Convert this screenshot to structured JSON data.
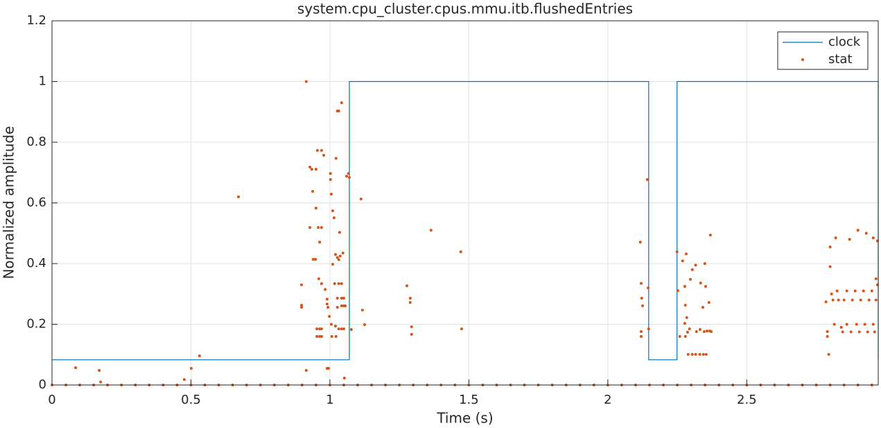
{
  "chart_data": {
    "type": "line",
    "title": "system.cpu_cluster.cpus.mmu.itb.flushedEntries",
    "xlabel": "Time (s)",
    "ylabel": "Normalized amplitude",
    "xlim": [
      0,
      2.973
    ],
    "ylim": [
      0,
      1.2
    ],
    "xticks": [
      0,
      0.5,
      1,
      1.5,
      2,
      2.5
    ],
    "yticks": [
      0,
      0.2,
      0.4,
      0.6,
      0.8,
      1,
      1.2
    ],
    "grid": true,
    "legend": "northeast",
    "series": [
      {
        "name": "clock",
        "type": "line",
        "color": "#0072bd",
        "x": [
          0,
          1.07,
          1.07,
          2.147,
          2.147,
          2.249,
          2.249,
          2.973,
          2.973
        ],
        "values": [
          0.083,
          0.083,
          1,
          1,
          0.083,
          0.083,
          1,
          1,
          0.083
        ]
      },
      {
        "name": "stat",
        "type": "scatter",
        "color": "#d95319",
        "x": [
          0,
          0.05,
          0.1,
          0.15,
          0.2,
          0.25,
          0.3,
          0.35,
          0.4,
          0.45,
          0.5,
          0.55,
          0.6,
          0.65,
          0.7,
          0.75,
          0.8,
          0.85,
          0.9,
          0.95,
          1,
          1.05,
          1.1,
          1.15,
          1.2,
          1.25,
          1.3,
          1.35,
          1.4,
          1.45,
          1.5,
          1.55,
          1.6,
          1.65,
          1.7,
          1.75,
          1.8,
          1.85,
          1.9,
          1.95,
          2,
          2.05,
          2.1,
          2.15,
          2.2,
          2.25,
          2.3,
          2.35,
          2.4,
          2.45,
          2.5,
          2.55,
          2.6,
          2.65,
          2.7,
          2.75,
          2.8,
          2.85,
          2.9,
          2.95,
          0.085,
          0.17,
          0.175,
          0.476,
          0.501,
          0.531,
          0.671,
          0.898,
          0.898,
          0.898,
          0.915,
          0.915,
          0.928,
          0.928,
          0.935,
          0.938,
          0.94,
          0.948,
          0.95,
          0.95,
          0.953,
          0.953,
          0.955,
          0.958,
          0.96,
          0.963,
          0.963,
          0.963,
          0.97,
          0.97,
          0.97,
          0.97,
          0.97,
          0.978,
          0.983,
          0.99,
          0.99,
          0.99,
          0.993,
          0.995,
          0.998,
          1.002,
          1.002,
          1.005,
          1.005,
          1.007,
          1.01,
          1.01,
          1.015,
          1.017,
          1.02,
          1.02,
          1.022,
          1.022,
          1.027,
          1.027,
          1.027,
          1.027,
          1.032,
          1.032,
          1.032,
          1.032,
          1.035,
          1.037,
          1.042,
          1.042,
          1.042,
          1.042,
          1.042,
          1.047,
          1.05,
          1.05,
          1.05,
          1.052,
          1.055,
          1.06,
          1.067,
          1.07,
          1.077,
          1.112,
          1.117,
          1.125,
          1.277,
          1.289,
          1.289,
          1.294,
          1.294,
          1.364,
          1.471,
          1.474,
          2.117,
          2.12,
          2.122,
          2.125,
          2.12,
          2.12,
          2.142,
          2.145,
          2.147,
          2.249,
          2.252,
          2.259,
          2.269,
          2.277,
          2.282,
          2.279,
          2.284,
          2.287,
          2.277,
          2.294,
          2.279,
          2.289,
          2.304,
          2.316,
          2.331,
          2.344,
          2.354,
          2.297,
          2.304,
          2.316,
          2.334,
          2.349,
          2.352,
          2.342,
          2.347,
          2.357,
          2.367,
          2.372,
          2.364,
          2.369,
          2.332,
          2.319,
          2.785,
          2.79,
          2.79,
          2.795,
          2.8,
          2.8,
          2.805,
          2.81,
          2.815,
          2.82,
          2.825,
          2.83,
          2.84,
          2.845,
          2.85,
          2.86,
          2.86,
          2.87,
          2.875,
          2.88,
          2.89,
          2.895,
          2.9,
          2.905,
          2.91,
          2.92,
          2.925,
          2.93,
          2.935,
          2.94,
          2.95,
          2.955,
          2.955,
          2.96,
          2.965,
          2.965,
          2.97,
          2.97
        ],
        "values": [
          0,
          0,
          0,
          0,
          0,
          0,
          0,
          0,
          0,
          0,
          0,
          0,
          0,
          0,
          0,
          0,
          0,
          0,
          0,
          0,
          0,
          0,
          0,
          0,
          0,
          0,
          0,
          0,
          0,
          0,
          0,
          0,
          0,
          0,
          0,
          0,
          0,
          0,
          0,
          0,
          0,
          0,
          0,
          0,
          0,
          0,
          0,
          0,
          0,
          0,
          0,
          0,
          0,
          0,
          0,
          0,
          0,
          0,
          0,
          0,
          0.057,
          0.048,
          0.01,
          0.018,
          0.055,
          0.096,
          0.62,
          0.33,
          0.263,
          0.256,
          1,
          0.048,
          0.718,
          0.519,
          0.711,
          0.638,
          0.414,
          0.414,
          0.711,
          0.583,
          0.185,
          0.16,
          0.773,
          0.519,
          0.35,
          0.471,
          0.185,
          0.16,
          0.773,
          0.519,
          0.334,
          0.185,
          0.16,
          0.757,
          0.315,
          0.283,
          0.267,
          0.055,
          0.256,
          0.055,
          0.226,
          0.697,
          0.677,
          0.629,
          0.2,
          0.16,
          0.574,
          0.398,
          0.551,
          0.334,
          0.43,
          0.194,
          0.747,
          0.16,
          0.903,
          0.42,
          0.286,
          0.256,
          0.903,
          0.413,
          0.334,
          0.185,
          0.503,
          0.425,
          0.93,
          0.334,
          0.286,
          0.261,
          0.185,
          0.435,
          0.286,
          0.261,
          0.185,
          0.023,
          0.261,
          0.688,
          0.697,
          0.684,
          0.183,
          0.613,
          0.247,
          0.199,
          0.327,
          0.286,
          0.272,
          0.192,
          0.167,
          0.51,
          0.439,
          0.185,
          0.471,
          0.335,
          0.286,
          0.261,
          0.176,
          0.16,
          0.677,
          0.32,
          0.185,
          0.439,
          0.311,
          0.16,
          0.409,
          0.325,
          0.432,
          0.263,
          0.222,
          0.174,
          0.203,
          0.185,
          0.16,
          0.101,
          0.101,
          0.101,
          0.101,
          0.101,
          0.101,
          0.348,
          0.38,
          0.395,
          0.336,
          0.4,
          0.325,
          0.256,
          0.176,
          0.178,
          0.178,
          0.176,
          0.272,
          0.494,
          0.183,
          0.176,
          0.274,
          0.176,
          0.16,
          0.101,
          0.455,
          0.39,
          0.3,
          0.28,
          0.2,
          0.485,
          0.31,
          0.28,
          0.19,
          0.175,
          0.28,
          0.31,
          0.2,
          0.48,
          0.175,
          0.28,
          0.31,
          0.2,
          0.51,
          0.175,
          0.28,
          0.31,
          0.2,
          0.5,
          0.175,
          0.28,
          0.31,
          0.485,
          0.2,
          0.175,
          0.35,
          0.28,
          0.33,
          0.475
        ]
      }
    ]
  }
}
